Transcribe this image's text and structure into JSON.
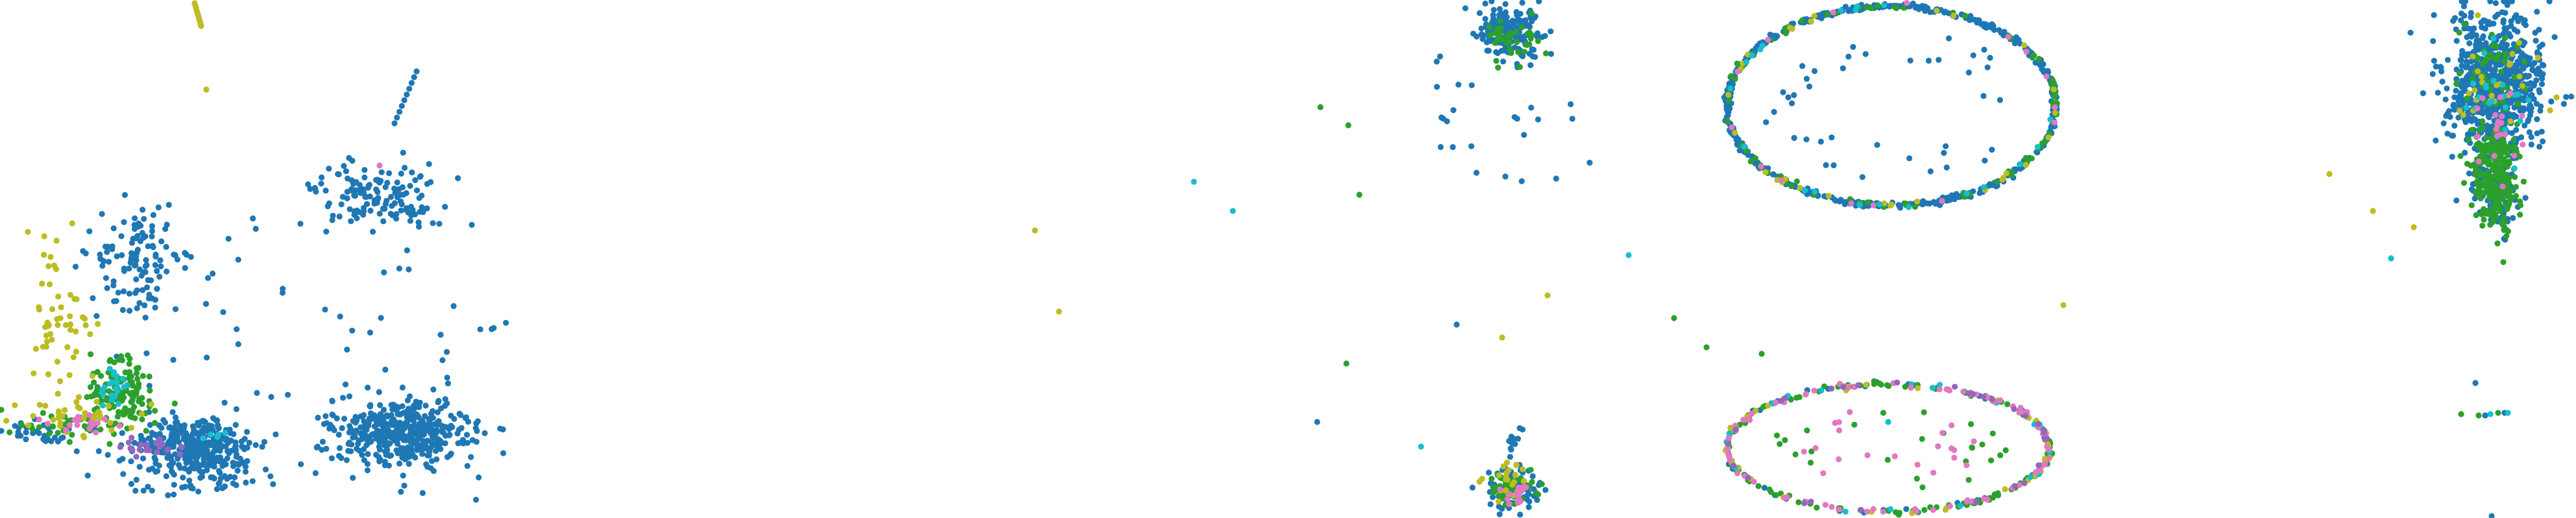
{
  "figure": {
    "description_free": true
  },
  "colors": {
    "blue": "#1f77b4",
    "green": "#2ca02c",
    "olive": "#bcbd22",
    "cyan": "#17becf",
    "pink": "#e377c2",
    "purple": "#9467bd",
    "brown": "#8c564b"
  },
  "chart_data": [
    {
      "type": "scatter",
      "title": "",
      "xlabel": "",
      "ylabel": "",
      "axes_visible": false,
      "grid": false,
      "legend": "none",
      "xlim": [
        0,
        800
      ],
      "ylim": [
        798,
        0
      ],
      "series": [
        {
          "color": "blue",
          "clusters": [
            {
              "cx": 300,
              "cy": 685,
              "rx": 100,
              "ry": 48,
              "n": 320,
              "shape": "blob"
            },
            {
              "cx": 580,
              "cy": 300,
              "rx": 100,
              "ry": 50,
              "n": 140,
              "shape": "blob"
            },
            {
              "cx": 620,
              "cy": 665,
              "rx": 115,
              "ry": 55,
              "n": 420,
              "shape": "blob"
            },
            {
              "cx": 215,
              "cy": 400,
              "rx": 70,
              "ry": 100,
              "n": 110,
              "shape": "blob"
            },
            {
              "cx": 460,
              "cy": 550,
              "rx": 320,
              "ry": 220,
              "n": 90,
              "shape": "sparse"
            },
            {
              "cx": 300,
              "cy": 735,
              "rx": 150,
              "ry": 30,
              "n": 60,
              "shape": "blob"
            },
            {
              "cx": 70,
              "cy": 665,
              "rx": 60,
              "ry": 20,
              "n": 30,
              "shape": "blob"
            }
          ],
          "streaks": [
            {
              "x1": 608,
              "y1": 190,
              "x2": 642,
              "y2": 110,
              "n": 10
            }
          ]
        },
        {
          "color": "green",
          "clusters": [
            {
              "cx": 190,
              "cy": 610,
              "rx": 55,
              "ry": 60,
              "n": 130,
              "shape": "blob"
            },
            {
              "cx": 120,
              "cy": 655,
              "rx": 100,
              "ry": 25,
              "n": 40,
              "shape": "blob"
            }
          ]
        },
        {
          "color": "olive",
          "clusters": [
            {
              "cx": 90,
              "cy": 500,
              "rx": 60,
              "ry": 130,
              "n": 55,
              "shape": "blob"
            },
            {
              "cx": 120,
              "cy": 640,
              "rx": 110,
              "ry": 30,
              "n": 35,
              "shape": "blob"
            }
          ],
          "streaks": [
            {
              "x1": 300,
              "y1": 5,
              "x2": 310,
              "y2": 40,
              "n": 10
            }
          ],
          "singles": [
            [
              318,
              138
            ]
          ]
        },
        {
          "color": "cyan",
          "clusters": [
            {
              "cx": 175,
              "cy": 600,
              "rx": 30,
              "ry": 30,
              "n": 22,
              "shape": "blob"
            },
            {
              "cx": 330,
              "cy": 668,
              "rx": 30,
              "ry": 10,
              "n": 5,
              "shape": "blob"
            }
          ]
        },
        {
          "color": "pink",
          "clusters": [
            {
              "cx": 120,
              "cy": 650,
              "rx": 80,
              "ry": 20,
              "n": 18,
              "shape": "blob"
            }
          ],
          "singles": [
            [
              585,
              255
            ]
          ]
        },
        {
          "color": "purple",
          "clusters": [
            {
              "cx": 240,
              "cy": 690,
              "rx": 60,
              "ry": 20,
              "n": 22,
              "shape": "blob"
            }
          ]
        }
      ]
    },
    {
      "type": "scatter",
      "title": "",
      "xlabel": "",
      "ylabel": "",
      "axes_visible": false,
      "grid": false,
      "legend": "none",
      "xlim": [
        1580,
        3200
      ],
      "ylim": [
        798,
        0
      ],
      "series": [
        {
          "color": "blue",
          "clusters": [
            {
              "cx": 2325,
              "cy": 50,
              "rx": 50,
              "ry": 45,
              "n": 180,
              "shape": "blob"
            },
            {
              "cx": 2330,
              "cy": 755,
              "rx": 45,
              "ry": 35,
              "n": 90,
              "shape": "blob"
            },
            {
              "cx": 2330,
              "cy": 180,
              "rx": 120,
              "ry": 100,
              "n": 25,
              "shape": "sparse"
            },
            {
              "cx": 2335,
              "cy": 680,
              "rx": 20,
              "ry": 30,
              "n": 12,
              "shape": "blob"
            }
          ],
          "rings": [
            {
              "cx": 2915,
              "cy": 163,
              "rx": 255,
              "ry": 155,
              "n": 520,
              "spread": 8
            },
            {
              "cx": 2915,
              "cy": 163,
              "rx": 200,
              "ry": 120,
              "n": 40,
              "spread": 60
            },
            {
              "cx": 2910,
              "cy": 690,
              "rx": 250,
              "ry": 100,
              "n": 60,
              "spread": 6
            }
          ],
          "singles": [
            [
              2245,
              500
            ],
            [
              2030,
              650
            ],
            [
              2320,
              272
            ]
          ]
        },
        {
          "color": "green",
          "clusters": [
            {
              "cx": 2325,
              "cy": 60,
              "rx": 50,
              "ry": 40,
              "n": 40,
              "shape": "blob"
            },
            {
              "cx": 2330,
              "cy": 752,
              "rx": 40,
              "ry": 30,
              "n": 50,
              "shape": "blob"
            }
          ],
          "rings": [
            {
              "cx": 2915,
              "cy": 163,
              "rx": 255,
              "ry": 155,
              "n": 90,
              "spread": 10
            },
            {
              "cx": 2910,
              "cy": 690,
              "rx": 250,
              "ry": 100,
              "n": 130,
              "spread": 10
            },
            {
              "cx": 2910,
              "cy": 690,
              "rx": 180,
              "ry": 70,
              "n": 25,
              "spread": 60
            }
          ],
          "singles": [
            [
              2035,
              165
            ],
            [
              2078,
              193
            ],
            [
              2095,
              300
            ],
            [
              2075,
              560
            ],
            [
              2580,
              490
            ],
            [
              2630,
              535
            ],
            [
              2715,
              545
            ]
          ]
        },
        {
          "color": "olive",
          "clusters": [
            {
              "cx": 2325,
              "cy": 740,
              "rx": 40,
              "ry": 35,
              "n": 25,
              "shape": "blob"
            }
          ],
          "rings": [
            {
              "cx": 2915,
              "cy": 163,
              "rx": 255,
              "ry": 155,
              "n": 30,
              "spread": 10
            },
            {
              "cx": 2910,
              "cy": 690,
              "rx": 250,
              "ry": 100,
              "n": 45,
              "spread": 10
            }
          ],
          "singles": [
            [
              1595,
              355
            ],
            [
              1632,
              480
            ],
            [
              2385,
              455
            ],
            [
              3180,
              470
            ],
            [
              2315,
              520
            ]
          ]
        },
        {
          "color": "cyan",
          "singles": [
            [
              1840,
              280
            ],
            [
              1900,
              325
            ],
            [
              2510,
              393
            ],
            [
              2190,
              688
            ],
            [
              2910,
              650
            ]
          ],
          "rings": [
            {
              "cx": 2915,
              "cy": 163,
              "rx": 255,
              "ry": 155,
              "n": 20,
              "spread": 10
            },
            {
              "cx": 2910,
              "cy": 690,
              "rx": 250,
              "ry": 100,
              "n": 20,
              "spread": 10
            }
          ]
        },
        {
          "color": "pink",
          "clusters": [
            {
              "cx": 2330,
              "cy": 760,
              "rx": 35,
              "ry": 25,
              "n": 15,
              "shape": "blob"
            }
          ],
          "rings": [
            {
              "cx": 2915,
              "cy": 163,
              "rx": 255,
              "ry": 155,
              "n": 15,
              "spread": 10
            },
            {
              "cx": 2910,
              "cy": 690,
              "rx": 250,
              "ry": 100,
              "n": 70,
              "spread": 12
            },
            {
              "cx": 2910,
              "cy": 690,
              "rx": 150,
              "ry": 60,
              "n": 20,
              "spread": 60
            }
          ]
        },
        {
          "color": "purple",
          "rings": [
            {
              "cx": 2910,
              "cy": 690,
              "rx": 250,
              "ry": 100,
              "n": 30,
              "spread": 10
            }
          ]
        }
      ]
    },
    {
      "type": "scatter",
      "title": "",
      "xlabel": "",
      "ylabel": "",
      "axes_visible": false,
      "grid": false,
      "legend": "none",
      "xlim": [
        3580,
        3970
      ],
      "ylim": [
        798,
        0
      ],
      "series": [
        {
          "color": "blue",
          "clusters": [
            {
              "cx": 3845,
              "cy": 130,
              "rx": 80,
              "ry": 120,
              "n": 720,
              "shape": "blob"
            },
            {
              "cx": 3845,
              "cy": 300,
              "rx": 45,
              "ry": 60,
              "n": 90,
              "shape": "blob"
            }
          ],
          "singles": [
            [
              3815,
              590
            ],
            [
              3860,
              636
            ],
            [
              3830,
              640
            ],
            [
              3840,
              795
            ],
            [
              3685,
              398
            ]
          ]
        },
        {
          "color": "green",
          "clusters": [
            {
              "cx": 3845,
              "cy": 270,
              "rx": 40,
              "ry": 90,
              "n": 260,
              "shape": "blob"
            },
            {
              "cx": 3845,
              "cy": 100,
              "rx": 60,
              "ry": 60,
              "n": 40,
              "shape": "blob"
            }
          ],
          "singles": [
            [
              3793,
              638
            ],
            [
              3820,
              640
            ],
            [
              3850,
              636
            ]
          ]
        },
        {
          "color": "olive",
          "clusters": [
            {
              "cx": 3845,
              "cy": 120,
              "rx": 70,
              "ry": 90,
              "n": 25,
              "shape": "blob"
            }
          ],
          "singles": [
            [
              3590,
              268
            ],
            [
              3657,
              325
            ],
            [
              3720,
              350
            ],
            [
              3940,
              150
            ],
            [
              3930,
              170
            ]
          ]
        },
        {
          "color": "cyan",
          "clusters": [
            {
              "cx": 3845,
              "cy": 160,
              "rx": 50,
              "ry": 80,
              "n": 20,
              "shape": "blob"
            }
          ],
          "singles": [
            [
              3685,
              398
            ],
            [
              3838,
              638
            ],
            [
              3865,
              636
            ]
          ]
        },
        {
          "color": "pink",
          "clusters": [
            {
              "cx": 3840,
              "cy": 200,
              "rx": 50,
              "ry": 80,
              "n": 20,
              "shape": "blob"
            }
          ]
        }
      ]
    }
  ]
}
